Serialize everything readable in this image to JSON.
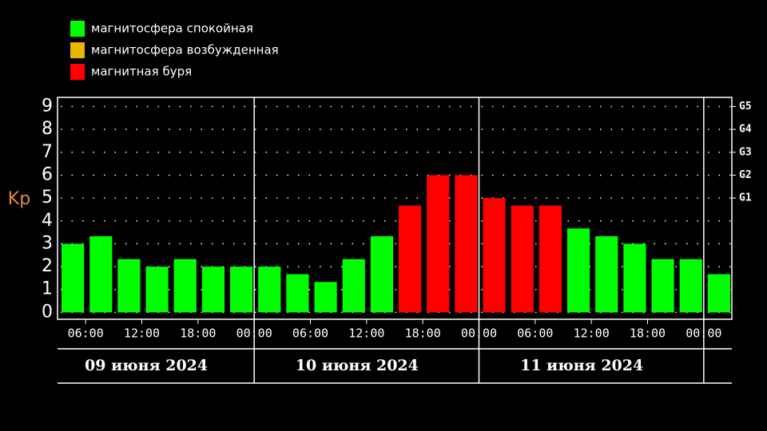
{
  "chart_data": {
    "type": "bar",
    "y_label": "Kp",
    "legend": [
      {
        "name": "магнитосфера спокойная",
        "color": "#00ff00"
      },
      {
        "name": "магнитосфера возбужденная",
        "color": "#e6b800"
      },
      {
        "name": "магнитная буря",
        "color": "#ff0000"
      }
    ],
    "x": [
      3,
      6,
      9,
      12,
      15,
      18,
      21,
      24,
      27,
      30,
      33,
      36,
      39,
      42,
      45,
      48,
      51,
      54,
      57,
      60,
      63,
      66,
      69,
      72
    ],
    "values": [
      3.0,
      3.33,
      2.33,
      2.0,
      2.33,
      2.0,
      2.0,
      2.0,
      1.67,
      1.33,
      2.33,
      3.33,
      4.67,
      6.0,
      6.0,
      5.0,
      4.67,
      4.67,
      3.67,
      3.33,
      3.0,
      2.33,
      2.33,
      1.67
    ],
    "colors": [
      "#00ff00",
      "#00ff00",
      "#00ff00",
      "#00ff00",
      "#00ff00",
      "#00ff00",
      "#00ff00",
      "#00ff00",
      "#00ff00",
      "#00ff00",
      "#00ff00",
      "#00ff00",
      "#ff0000",
      "#ff0000",
      "#ff0000",
      "#ff0000",
      "#ff0000",
      "#ff0000",
      "#00ff00",
      "#00ff00",
      "#00ff00",
      "#00ff00",
      "#00ff00",
      "#00ff00"
    ],
    "xlim": [
      3,
      75
    ],
    "xticks": [
      {
        "value": 6,
        "label": "06:00"
      },
      {
        "value": 12,
        "label": "12:00"
      },
      {
        "value": 18,
        "label": "18:00"
      },
      {
        "value": 24,
        "label": "00:00"
      },
      {
        "value": 30,
        "label": "06:00"
      },
      {
        "value": 36,
        "label": "12:00"
      },
      {
        "value": 42,
        "label": "18:00"
      },
      {
        "value": 48,
        "label": "00:00"
      },
      {
        "value": 54,
        "label": "06:00"
      },
      {
        "value": 60,
        "label": "12:00"
      },
      {
        "value": 66,
        "label": "18:00"
      },
      {
        "value": 72,
        "label": "00:00"
      }
    ],
    "ylim": [
      -0.3,
      9.4
    ],
    "yticks": [
      0,
      1,
      2,
      3,
      4,
      5,
      6,
      7,
      8,
      9
    ],
    "y2lim": [
      -0.3,
      9.4
    ],
    "y2ticks": [
      {
        "value": 5,
        "label": "G1"
      },
      {
        "value": 6,
        "label": "G2"
      },
      {
        "value": 7,
        "label": "G3"
      },
      {
        "value": 8,
        "label": "G4"
      },
      {
        "value": 9,
        "label": "G5"
      }
    ],
    "grid": true,
    "days": [
      {
        "label": "09 июня 2024",
        "start": 0,
        "end": 24
      },
      {
        "label": "10 июня 2024",
        "start": 24,
        "end": 48
      },
      {
        "label": "11 июня 2024",
        "start": 48,
        "end": 72
      }
    ]
  }
}
